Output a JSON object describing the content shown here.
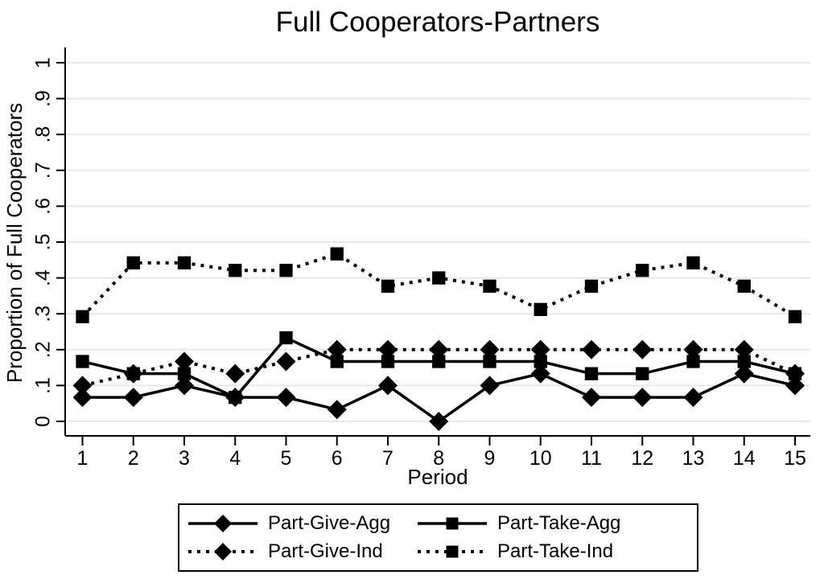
{
  "title": "Full Cooperators-Partners",
  "colors": {
    "line": "#000000",
    "grid": "#e1ebee",
    "background": "#ffffff",
    "text": "#000000"
  },
  "chart_data": {
    "type": "line",
    "title": "Full Cooperators-Partners",
    "xlabel": "Period",
    "ylabel": "Proportion of Full Cooperators",
    "x": [
      1,
      2,
      3,
      4,
      5,
      6,
      7,
      8,
      9,
      10,
      11,
      12,
      13,
      14,
      15
    ],
    "xtick_labels": [
      "1",
      "2",
      "3",
      "4",
      "5",
      "6",
      "7",
      "8",
      "9",
      "10",
      "11",
      "12",
      "13",
      "14",
      "15"
    ],
    "yticks": [
      0,
      0.1,
      0.2,
      0.3,
      0.4,
      0.5,
      0.6,
      0.7,
      0.8,
      0.9,
      1
    ],
    "ytick_labels": [
      "0",
      ".1",
      ".2",
      ".3",
      ".4",
      ".5",
      ".6",
      ".7",
      ".8",
      ".9",
      "1"
    ],
    "ylim": [
      0,
      1
    ],
    "grid": "horizontal",
    "legend_position": "bottom",
    "series": [
      {
        "name": "Part-Give-Agg",
        "line_style": "solid",
        "marker": "diamond",
        "values": [
          0.067,
          0.067,
          0.1,
          0.067,
          0.067,
          0.033,
          0.1,
          0.0,
          0.1,
          0.133,
          0.067,
          0.067,
          0.067,
          0.133,
          0.1
        ]
      },
      {
        "name": "Part-Take-Agg",
        "line_style": "solid",
        "marker": "square",
        "values": [
          0.167,
          0.133,
          0.133,
          0.067,
          0.233,
          0.167,
          0.167,
          0.167,
          0.167,
          0.167,
          0.133,
          0.133,
          0.167,
          0.167,
          0.133
        ]
      },
      {
        "name": "Part-Give-Ind",
        "line_style": "dotted",
        "marker": "diamond",
        "values": [
          0.1,
          0.133,
          0.167,
          0.133,
          0.167,
          0.2,
          0.2,
          0.2,
          0.2,
          0.2,
          0.2,
          0.2,
          0.2,
          0.2,
          0.133
        ]
      },
      {
        "name": "Part-Take-Ind",
        "line_style": "dotted",
        "marker": "square",
        "values": [
          0.292,
          0.442,
          0.442,
          0.421,
          0.421,
          0.467,
          0.377,
          0.4,
          0.377,
          0.312,
          0.377,
          0.421,
          0.442,
          0.377,
          0.292
        ]
      }
    ]
  }
}
